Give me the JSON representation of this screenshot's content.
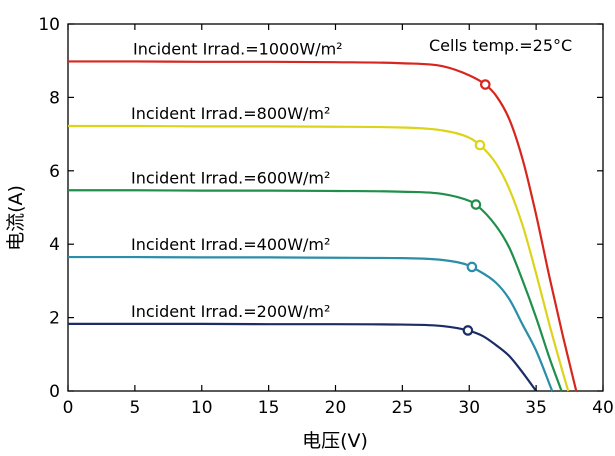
{
  "chart_data": {
    "type": "line",
    "xlabel": "电压(V)",
    "ylabel": "电流(A)",
    "xlim": [
      0,
      40
    ],
    "ylim": [
      0,
      10
    ],
    "xticks": [
      0,
      5,
      10,
      15,
      20,
      25,
      30,
      35,
      40
    ],
    "yticks": [
      0,
      2,
      4,
      6,
      8,
      10
    ],
    "grid": false,
    "legend": "none",
    "annotations": [
      {
        "id": "temp",
        "text": "Cells temp.=25°C"
      }
    ],
    "series": [
      {
        "label": "Incident Irrad.=1000W/m²",
        "color": "#d7261e",
        "isc": 8.98,
        "voc": 38.0,
        "mpp": [
          31.2,
          8.35
        ],
        "x": [
          0,
          5,
          10,
          15,
          20,
          25,
          28,
          30,
          31.2,
          32,
          33,
          34,
          35,
          36,
          37,
          38
        ],
        "y": [
          8.98,
          8.98,
          8.97,
          8.97,
          8.96,
          8.93,
          8.85,
          8.6,
          8.35,
          8.05,
          7.4,
          6.3,
          4.8,
          3.1,
          1.5,
          0
        ]
      },
      {
        "label": "Incident Irrad.=800W/m²",
        "color": "#dcd41a",
        "isc": 7.22,
        "voc": 37.4,
        "mpp": [
          30.8,
          6.7
        ],
        "x": [
          0,
          5,
          10,
          15,
          20,
          25,
          28,
          30,
          30.8,
          32,
          33,
          34,
          35,
          36,
          37,
          37.4
        ],
        "y": [
          7.22,
          7.22,
          7.21,
          7.21,
          7.2,
          7.18,
          7.1,
          6.9,
          6.7,
          6.2,
          5.5,
          4.5,
          3.2,
          1.8,
          0.5,
          0
        ]
      },
      {
        "label": "Incident Irrad.=600W/m²",
        "color": "#1f8f4a",
        "isc": 5.47,
        "voc": 36.9,
        "mpp": [
          30.5,
          5.08
        ],
        "x": [
          0,
          5,
          10,
          15,
          20,
          25,
          28,
          30,
          30.5,
          32,
          33,
          34,
          35,
          36,
          36.9
        ],
        "y": [
          5.47,
          5.47,
          5.46,
          5.46,
          5.45,
          5.43,
          5.37,
          5.18,
          5.08,
          4.5,
          3.9,
          3.0,
          2.0,
          0.9,
          0
        ]
      },
      {
        "label": "Incident Irrad.=400W/m²",
        "color": "#2a8ea8",
        "isc": 3.65,
        "voc": 36.2,
        "mpp": [
          30.2,
          3.38
        ],
        "x": [
          0,
          5,
          10,
          15,
          20,
          25,
          28,
          30,
          30.2,
          32,
          33,
          34,
          35,
          36.2
        ],
        "y": [
          3.65,
          3.65,
          3.64,
          3.64,
          3.63,
          3.62,
          3.57,
          3.42,
          3.38,
          2.95,
          2.5,
          1.8,
          1.1,
          0
        ]
      },
      {
        "label": "Incident Irrad.=200W/m²",
        "color": "#1a2d66",
        "isc": 1.83,
        "voc": 35.0,
        "mpp": [
          29.9,
          1.65
        ],
        "x": [
          0,
          5,
          10,
          15,
          20,
          25,
          28,
          29.9,
          31,
          32,
          33,
          34,
          35
        ],
        "y": [
          1.83,
          1.83,
          1.83,
          1.82,
          1.82,
          1.81,
          1.77,
          1.65,
          1.5,
          1.25,
          0.95,
          0.5,
          0
        ]
      }
    ]
  }
}
